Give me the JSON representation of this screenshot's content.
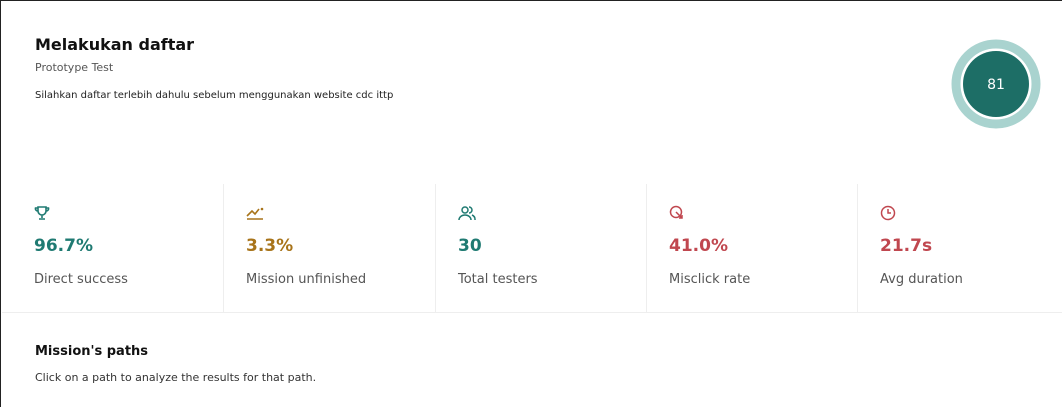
{
  "header": {
    "title": "Melakukan daftar",
    "subtitle": "Prototype Test",
    "description": "Silahkan daftar terlebih dahulu sebelum menggunakan website cdc ittp",
    "score": "81"
  },
  "stats": [
    {
      "value": "96.7%",
      "label": "Direct success"
    },
    {
      "value": "3.3%",
      "label": "Mission unfinished"
    },
    {
      "value": "30",
      "label": "Total testers"
    },
    {
      "value": "41.0%",
      "label": "Misclick rate"
    },
    {
      "value": "21.7s",
      "label": "Avg duration"
    }
  ],
  "paths": {
    "title": "Mission's paths",
    "text": "Click on a path to analyze the results for that path."
  }
}
